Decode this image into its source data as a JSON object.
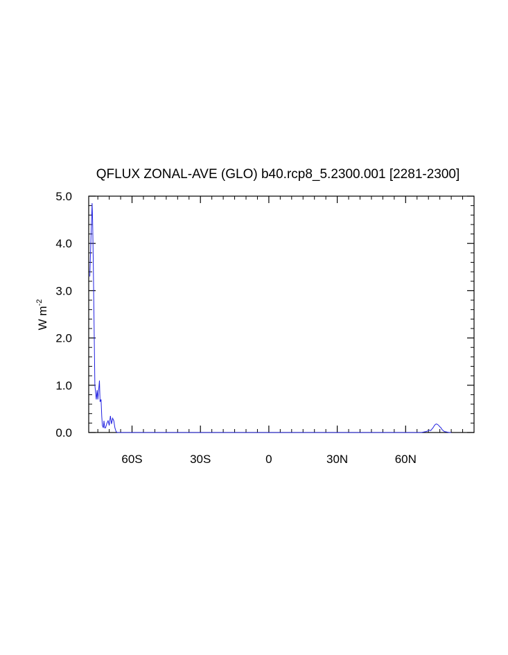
{
  "chart_data": {
    "type": "line",
    "title": "QFLUX ZONAL-AVE (GLO) b40.rcp8_5.2300.001 [2281-2300]",
    "ylabel_base": "W m",
    "ylabel_exp": "-2",
    "xlim": [
      -79,
      90
    ],
    "ylim": [
      0,
      5
    ],
    "x_ticks": [
      {
        "value": -60,
        "label": "60S"
      },
      {
        "value": -30,
        "label": "30S"
      },
      {
        "value": 0,
        "label": "0"
      },
      {
        "value": 30,
        "label": "30N"
      },
      {
        "value": 60,
        "label": "60N"
      }
    ],
    "y_ticks": [
      {
        "value": 0,
        "label": "0.0"
      },
      {
        "value": 1,
        "label": "1.0"
      },
      {
        "value": 2,
        "label": "2.0"
      },
      {
        "value": 3,
        "label": "3.0"
      },
      {
        "value": 4,
        "label": "4.0"
      },
      {
        "value": 5,
        "label": "5.0"
      }
    ],
    "series_color": "#2020e0",
    "series": [
      {
        "x": [
          -78.5,
          -78.0,
          -77.5,
          -77.3,
          -77.0,
          -76.6,
          -76.3,
          -76.0,
          -75.7,
          -75.3,
          -75.0,
          -74.7,
          -74.3,
          -74.0,
          -73.6,
          -73.3,
          -73.0,
          -72.6,
          -72.3,
          -72.0,
          -71.6,
          -71.3,
          -71.0,
          -70.5,
          -70.0,
          -69.5,
          -69.0,
          -68.5,
          -68.0,
          -67.5,
          -67.0,
          -66.5,
          -66.0,
          -65.5,
          -65.0,
          -64.5,
          -64.0,
          -63.5,
          -63.0,
          -50.0,
          0.0,
          50.0,
          66.0,
          67.0,
          68.0,
          69.0,
          70.0,
          70.5,
          71.0,
          71.5,
          72.0,
          72.5,
          73.0,
          73.5,
          74.0,
          74.5,
          75.0,
          75.5,
          76.0,
          76.5,
          77.0,
          78.0,
          79.0,
          80.0
        ],
        "y": [
          3.3,
          4.15,
          4.85,
          4.5,
          3.6,
          2.1,
          1.0,
          0.85,
          0.7,
          0.9,
          0.7,
          0.85,
          1.1,
          0.65,
          0.7,
          0.35,
          0.15,
          0.1,
          0.25,
          0.1,
          0.1,
          0.15,
          0.2,
          0.25,
          0.15,
          0.35,
          0.18,
          0.3,
          0.25,
          0.1,
          0.02,
          0.0,
          0.0,
          0.0,
          0.0,
          0.0,
          0.0,
          0.0,
          0.0,
          0.0,
          0.0,
          0.0,
          0.0,
          0.0,
          0.01,
          0.02,
          0.04,
          0.05,
          0.04,
          0.07,
          0.1,
          0.14,
          0.17,
          0.18,
          0.17,
          0.15,
          0.12,
          0.1,
          0.06,
          0.04,
          0.02,
          0.01,
          0.0,
          0.0
        ]
      }
    ]
  }
}
